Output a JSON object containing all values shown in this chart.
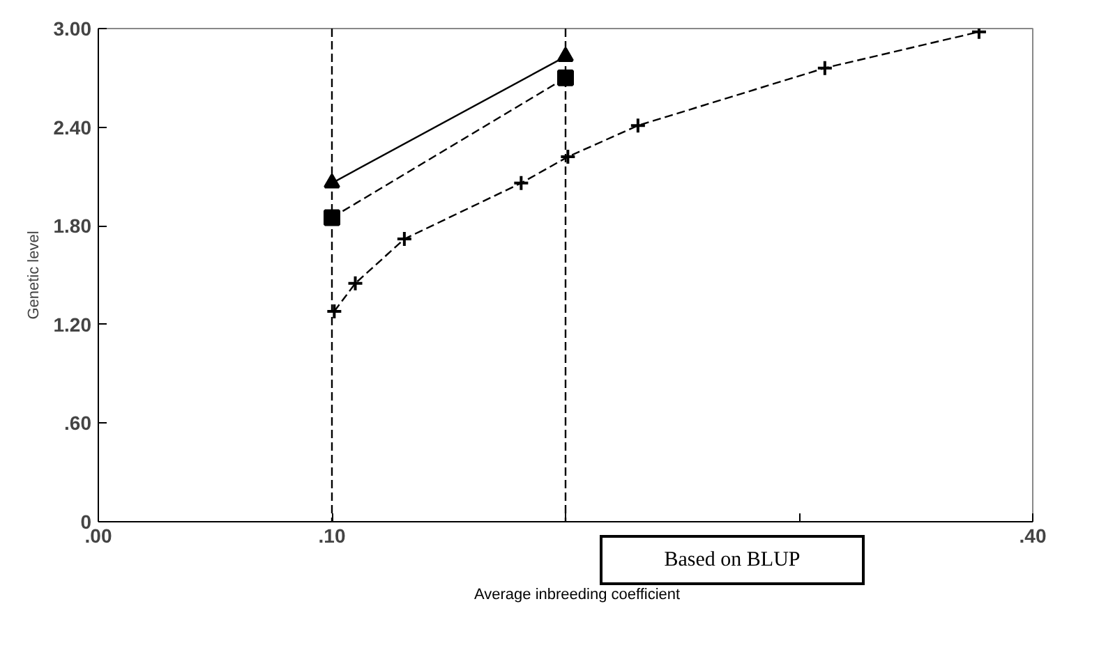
{
  "chart_data": {
    "type": "line",
    "xlabel": "Average inbreeding coefficient",
    "ylabel": "Genetic level",
    "xlim": [
      0,
      0.4
    ],
    "ylim": [
      0,
      3.0
    ],
    "xticks": [
      {
        "value": 0,
        "label": ".00"
      },
      {
        "value": 0.1,
        "label": ".10"
      },
      {
        "value": 0.2,
        "label": null
      },
      {
        "value": 0.3,
        "label": null
      },
      {
        "value": 0.4,
        "label": ".40"
      }
    ],
    "yticks": [
      0,
      {
        "value": 0.6,
        "label": ".60"
      },
      {
        "value": 1.2,
        "label": "1.20"
      },
      {
        "value": 1.8,
        "label": "1.80"
      },
      {
        "value": 2.4,
        "label": "2.40"
      },
      {
        "value": 3.0,
        "label": "3.00"
      }
    ],
    "series": [
      {
        "color": "#000000",
        "marker": "triangle",
        "line_style": "solid",
        "x": [
          0.1,
          0.2
        ],
        "values": [
          2.06,
          2.83
        ]
      },
      {
        "color": "#000000",
        "marker": "square",
        "line_style": "dashed",
        "x": [
          0.1,
          0.2
        ],
        "values": [
          1.85,
          2.7
        ]
      },
      {
        "color": "#000000",
        "marker": "cross",
        "line_style": "dashed",
        "x": [
          0.101,
          0.11,
          0.131,
          0.181,
          0.201,
          0.231,
          0.311,
          0.377
        ],
        "values": [
          1.28,
          1.45,
          1.72,
          2.06,
          2.22,
          2.41,
          2.76,
          2.98
        ]
      }
    ],
    "ref_lines": [
      {
        "axis": "x",
        "value": 0.1,
        "line_style": "dashed"
      },
      {
        "axis": "x",
        "value": 0.2,
        "line_style": "dashed"
      }
    ],
    "annotations": [
      "Based on BLUP"
    ],
    "grid": false
  }
}
